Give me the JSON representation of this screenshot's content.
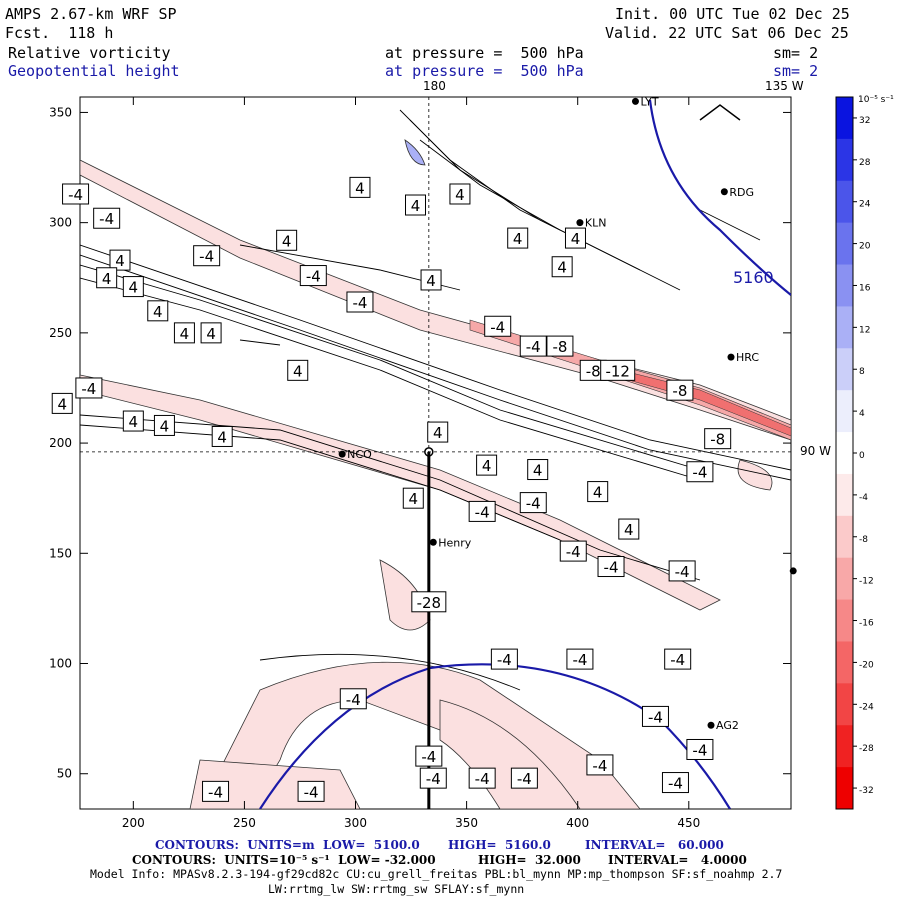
{
  "header": {
    "model": "AMPS 2.67-km WRF SP",
    "forecast": "Fcst.  118 h",
    "init": "Init. 00 UTC Tue 02 Dec 25",
    "valid": "Valid. 22 UTC Sat 06 Dec 25",
    "field1_name": "Relative vorticity",
    "field1_level": "at pressure =  500 hPa",
    "field1_smooth": "sm= 2",
    "field2_name": "Geopotential height",
    "field2_level": "at pressure =  500 hPa",
    "field2_smooth": "sm= 2"
  },
  "map_labels": {
    "lon_180": "180",
    "lon_135w": "135 W",
    "lat_90w": "90 W",
    "height_label": "5160"
  },
  "stations": [
    {
      "name": "LYT",
      "x": 426,
      "y": 355
    },
    {
      "name": "RDG",
      "x": 466,
      "y": 314
    },
    {
      "name": "KLN",
      "x": 401,
      "y": 300
    },
    {
      "name": "HRC",
      "x": 469,
      "y": 239
    },
    {
      "name": "NCO",
      "x": 294,
      "y": 195
    },
    {
      "name": "Henry",
      "x": 335,
      "y": 155
    },
    {
      "name": "AG2",
      "x": 460,
      "y": 72
    },
    {
      "name": "",
      "x": 497,
      "y": 142
    }
  ],
  "footer": {
    "line1_label": "CONTOURS:  UNITS=m  LOW=  5100.0",
    "line1_high": "HIGH=  5160.0",
    "line1_interval": "INTERVAL=   60.000",
    "line2_label": "CONTOURS:  UNITS=10⁻⁵ s⁻¹  LOW= -32.000",
    "line2_high": "HIGH=  32.000",
    "line2_interval": "INTERVAL=   4.0000",
    "model_info": "Model Info: MPASv8.2.3-194-gf29cd82c CU:cu_grell_freitas PBL:bl_mynn MP:mp_thompson SF:sf_noahmp 2.7",
    "model_info2": "LW:rrtmg_lw SW:rrtmg_sw SFLAY:sf_mynn"
  },
  "colorbar": {
    "unit": "10⁻⁵ s⁻¹",
    "levels": [
      "32",
      "28",
      "24",
      "20",
      "16",
      "12",
      "8",
      "4",
      "0",
      "-4",
      "-8",
      "-12",
      "-16",
      "-20",
      "-24",
      "-28",
      "-32"
    ],
    "colors": [
      "#0a14e0",
      "#2b35e6",
      "#4b55ea",
      "#6a73ee",
      "#8a91f2",
      "#aab0f6",
      "#cbcff9",
      "#eceefc",
      "#ffffff",
      "#fdeaea",
      "#fbcaca",
      "#f8a8a8",
      "#f68888",
      "#f46666",
      "#f24545",
      "#f02222",
      "#ee0000"
    ]
  },
  "chart_data": {
    "type": "contour map",
    "x_ticks": [
      200,
      250,
      300,
      350,
      400,
      450
    ],
    "y_ticks": [
      50,
      100,
      150,
      200,
      250,
      300,
      350
    ],
    "xlim": [
      176,
      496
    ],
    "ylim": [
      34,
      357
    ],
    "cross_x": 333,
    "cross_y": 196,
    "contour_labels": [
      {
        "v": "-4",
        "x": 174,
        "y": 313
      },
      {
        "v": "-4",
        "x": 188,
        "y": 302
      },
      {
        "v": "4",
        "x": 194,
        "y": 283
      },
      {
        "v": "4",
        "x": 188,
        "y": 275
      },
      {
        "v": "4",
        "x": 200,
        "y": 271
      },
      {
        "v": "4",
        "x": 211,
        "y": 260
      },
      {
        "v": "4",
        "x": 223,
        "y": 250
      },
      {
        "v": "4",
        "x": 235,
        "y": 250
      },
      {
        "v": "-4",
        "x": 233,
        "y": 285
      },
      {
        "v": "4",
        "x": 269,
        "y": 292
      },
      {
        "v": "-4",
        "x": 281,
        "y": 276
      },
      {
        "v": "-4",
        "x": 302,
        "y": 264
      },
      {
        "v": "4",
        "x": 302,
        "y": 316
      },
      {
        "v": "4",
        "x": 327,
        "y": 308
      },
      {
        "v": "4",
        "x": 334,
        "y": 274
      },
      {
        "v": "4",
        "x": 347,
        "y": 313
      },
      {
        "v": "4",
        "x": 373,
        "y": 293
      },
      {
        "v": "4",
        "x": 399,
        "y": 293
      },
      {
        "v": "4",
        "x": 393,
        "y": 280
      },
      {
        "v": "-4",
        "x": 364,
        "y": 253
      },
      {
        "v": "-4",
        "x": 380,
        "y": 244
      },
      {
        "v": "-8",
        "x": 392,
        "y": 244
      },
      {
        "v": "-8",
        "x": 407,
        "y": 233
      },
      {
        "v": "-12",
        "x": 418,
        "y": 233
      },
      {
        "v": "-8",
        "x": 446,
        "y": 224
      },
      {
        "v": "-8",
        "x": 463,
        "y": 202
      },
      {
        "v": "4",
        "x": 274,
        "y": 233
      },
      {
        "v": "-4",
        "x": 180,
        "y": 225
      },
      {
        "v": "4",
        "x": 168,
        "y": 218
      },
      {
        "v": "4",
        "x": 200,
        "y": 210
      },
      {
        "v": "4",
        "x": 214,
        "y": 208
      },
      {
        "v": "4",
        "x": 240,
        "y": 203
      },
      {
        "v": "4",
        "x": 337,
        "y": 205
      },
      {
        "v": "4",
        "x": 359,
        "y": 190
      },
      {
        "v": "4",
        "x": 382,
        "y": 188
      },
      {
        "v": "4",
        "x": 409,
        "y": 178
      },
      {
        "v": "-4",
        "x": 380,
        "y": 173
      },
      {
        "v": "-4",
        "x": 357,
        "y": 169
      },
      {
        "v": "4",
        "x": 326,
        "y": 175
      },
      {
        "v": "4",
        "x": 423,
        "y": 161
      },
      {
        "v": "-4",
        "x": 398,
        "y": 151
      },
      {
        "v": "-4",
        "x": 415,
        "y": 144
      },
      {
        "v": "-4",
        "x": 455,
        "y": 187
      },
      {
        "v": "-4",
        "x": 447,
        "y": 142
      },
      {
        "v": "-28",
        "x": 333,
        "y": 128
      },
      {
        "v": "-4",
        "x": 367,
        "y": 102
      },
      {
        "v": "-4",
        "x": 401,
        "y": 102
      },
      {
        "v": "-4",
        "x": 445,
        "y": 102
      },
      {
        "v": "-4",
        "x": 299,
        "y": 84
      },
      {
        "v": "-4",
        "x": 333,
        "y": 58
      },
      {
        "v": "-4",
        "x": 335,
        "y": 48
      },
      {
        "v": "-4",
        "x": 357,
        "y": 48
      },
      {
        "v": "-4",
        "x": 376,
        "y": 48
      },
      {
        "v": "-4",
        "x": 410,
        "y": 54
      },
      {
        "v": "-4",
        "x": 435,
        "y": 76
      },
      {
        "v": "-4",
        "x": 455,
        "y": 61
      },
      {
        "v": "-4",
        "x": 444,
        "y": 46
      },
      {
        "v": "-4",
        "x": 237,
        "y": 42
      },
      {
        "v": "-4",
        "x": 280,
        "y": 42
      }
    ]
  }
}
